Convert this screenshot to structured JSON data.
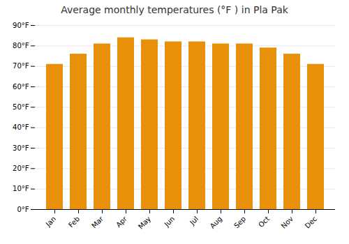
{
  "chart_data": {
    "type": "bar",
    "title": "Average monthly temperatures (°F ) in Pla Pak",
    "categories": [
      "Jan",
      "Feb",
      "Mar",
      "Apr",
      "May",
      "Jun",
      "Jul",
      "Aug",
      "Sep",
      "Oct",
      "Nov",
      "Dec"
    ],
    "values": [
      71,
      76,
      81,
      84,
      83,
      82,
      82,
      81,
      81,
      79,
      76,
      71
    ],
    "color": "#E8900A",
    "ylim": [
      0,
      90
    ],
    "yticks": [
      {
        "value": 0,
        "label": "0°F"
      },
      {
        "value": 10,
        "label": "10°F"
      },
      {
        "value": 20,
        "label": "20°F"
      },
      {
        "value": 30,
        "label": "30°F"
      },
      {
        "value": 40,
        "label": "40°F"
      },
      {
        "value": 50,
        "label": "50°F"
      },
      {
        "value": 60,
        "label": "60°F"
      },
      {
        "value": 70,
        "label": "70°F"
      },
      {
        "value": 80,
        "label": "80°F"
      },
      {
        "value": 90,
        "label": "90°F"
      }
    ],
    "grid": true
  }
}
